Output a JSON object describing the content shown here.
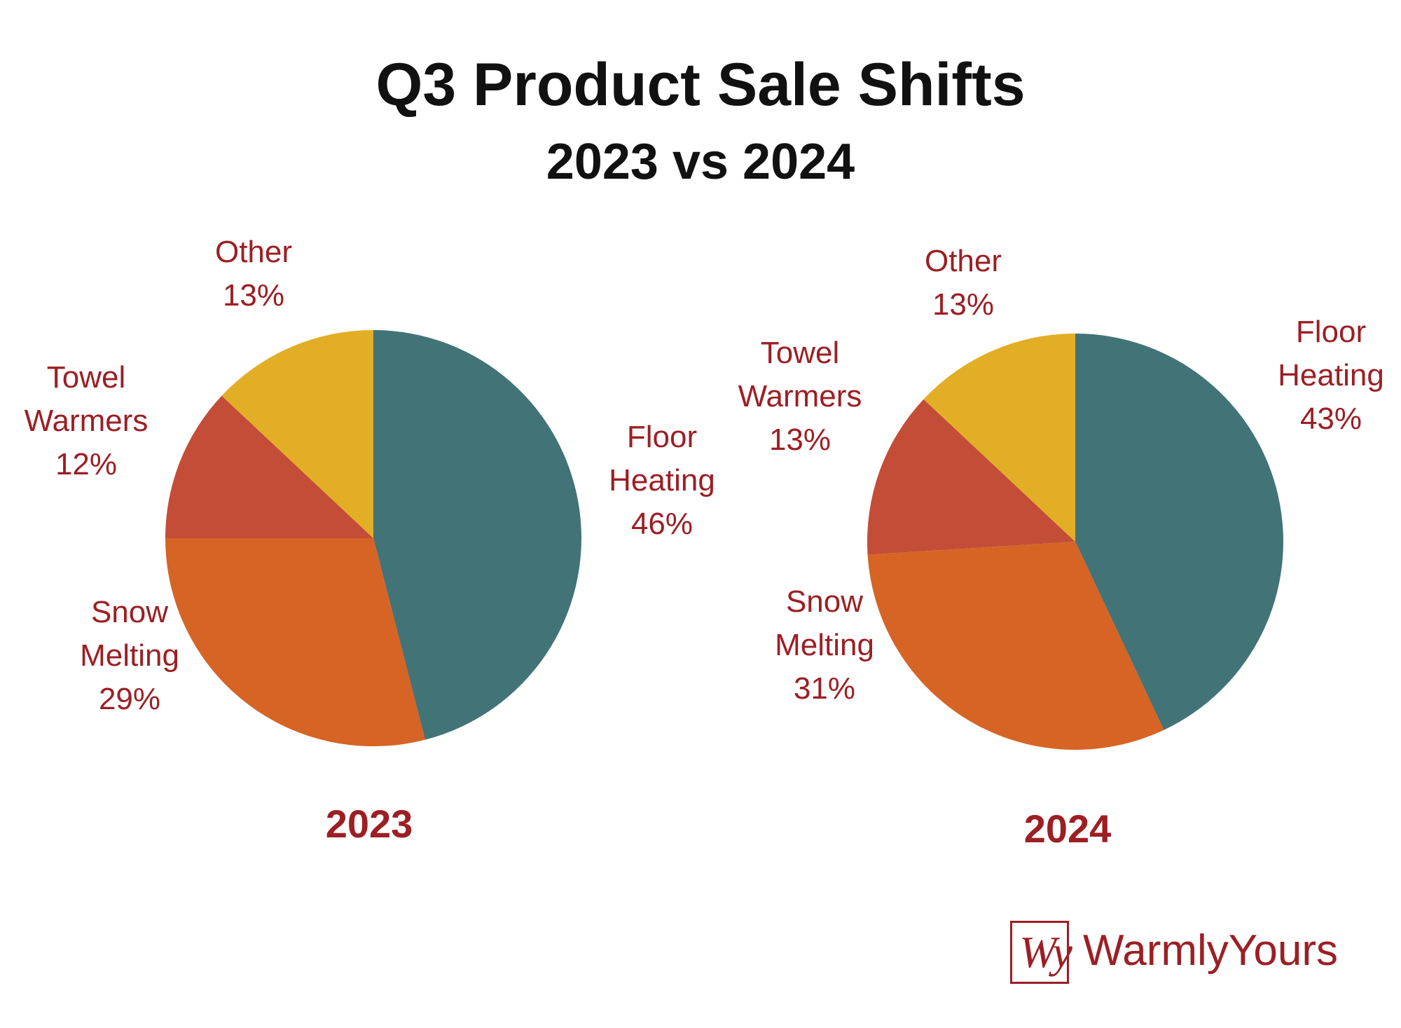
{
  "title": "Q3 Product Sale Shifts",
  "subtitle": "2023 vs 2024",
  "colors": {
    "title": "#111111",
    "labels": "#9c1f24",
    "floor_heating": "#427377",
    "snow_melting": "#d66425",
    "towel_warmers": "#c44d37",
    "other": "#e2ae26"
  },
  "logo": {
    "monogram": "Wy",
    "text": "WarmlyYours"
  },
  "chart_data": [
    {
      "type": "pie",
      "label": "2023",
      "slices": [
        {
          "name": [
            "Floor",
            "Heating"
          ],
          "value": 46,
          "label": "46%",
          "color": "#427377"
        },
        {
          "name": [
            "Snow",
            "Melting"
          ],
          "value": 29,
          "label": "29%",
          "color": "#d66425"
        },
        {
          "name": [
            "Towel",
            "Warmers"
          ],
          "value": 12,
          "label": "12%",
          "color": "#c44d37"
        },
        {
          "name": [
            "Other"
          ],
          "value": 13,
          "label": "13%",
          "color": "#e2ae26"
        }
      ]
    },
    {
      "type": "pie",
      "label": "2024",
      "slices": [
        {
          "name": [
            "Floor",
            "Heating"
          ],
          "value": 43,
          "label": "43%",
          "color": "#427377"
        },
        {
          "name": [
            "Snow",
            "Melting"
          ],
          "value": 31,
          "label": "31%",
          "color": "#d66425"
        },
        {
          "name": [
            "Towel",
            "Warmers"
          ],
          "value": 13,
          "label": "13%",
          "color": "#c44d37"
        },
        {
          "name": [
            "Other"
          ],
          "value": 13,
          "label": "13%",
          "color": "#e2ae26"
        }
      ]
    }
  ]
}
